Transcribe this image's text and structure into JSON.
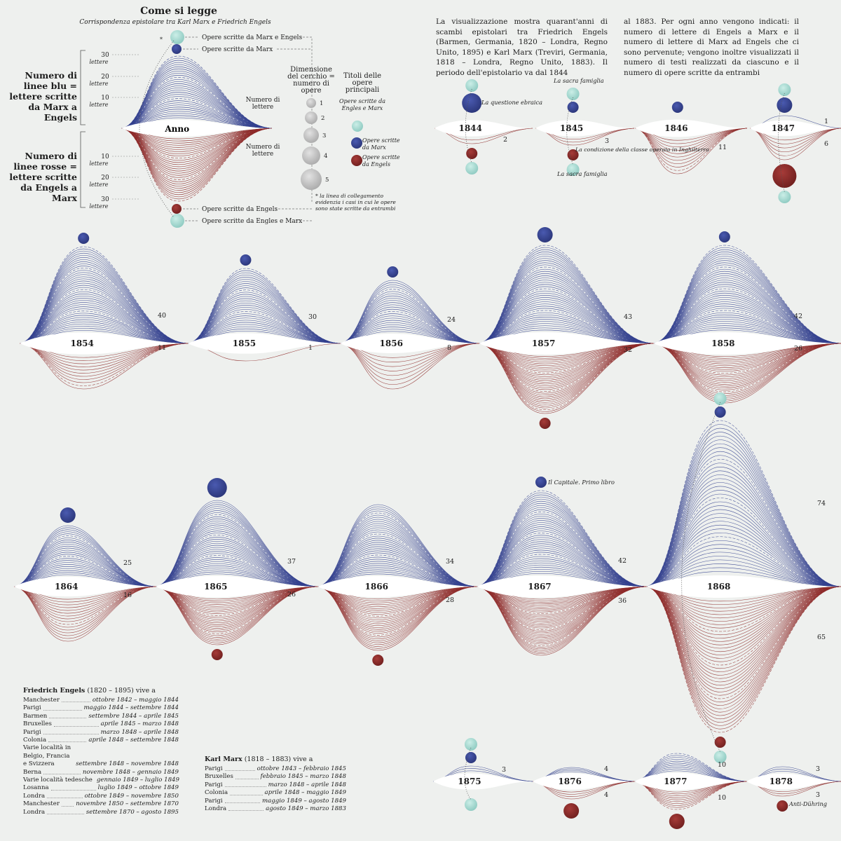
{
  "legend": {
    "title": "Come si legge",
    "subtitle": "Corrispondenza epistolare tra Karl Marx e Friedrich Engels",
    "blue_label": "Numero di linee blu = lettere scritte da Marx a Engels",
    "red_label": "Numero di linee rosse = lettere scritte da Engels a Marx",
    "ticks_top": [
      "30",
      "20",
      "10"
    ],
    "ticks_bottom": [
      "10",
      "20",
      "30"
    ],
    "tick_unit": "lettere",
    "year_label": "Anno",
    "letters_label": "Numero di lettere",
    "dot_both": "Opere scritte da Marx e Engels",
    "dot_marx": "Opere scritte da Marx",
    "dot_engels": "Opere scritte da Engels",
    "dot_both_bottom": "Opere scritte da Engles e Marx",
    "size_title": "Dimensione del cerchio = numero di opere",
    "sizes": [
      "1",
      "2",
      "3",
      "4",
      "5"
    ],
    "titles_header": "Titoli delle opere principali",
    "titles_both": "Opere scritte da Engles e Marx",
    "titles_marx": "Opere scritte da Marx",
    "titles_engels": "Opere scritte da Engels",
    "footnote": "* la linea di collegamento evidenzia i casi in cui le opere sono state scritte da entrambi"
  },
  "intro_left": "La visualizzazione mostra quarant'anni di scambi epistolari tra Friedrich Engels (Barmen, Germania, 1820 – Londra, Regno Unito, 1895) e Karl Marx (Treviri, Germania, 1818 – Londra, Regno Unito, 1883). Il periodo dell'epistolario va dal 1844",
  "intro_right": "al 1883. Per ogni anno vengono indicati: il numero di lettere di Engels a Marx e il numero di lettere di Marx ad Engels che ci sono pervenute; vengono inoltre visualizzati il numero di testi realizzati da ciascuno e il numero di opere scritte da entrambi",
  "colors": {
    "marx_blue": "#34418f",
    "engels_red": "#8e2b2a",
    "both_teal": "#a8d8d0",
    "background": "#eef0ee"
  },
  "chart_data": {
    "type": "line",
    "series": [
      {
        "name": "Marx a Engels",
        "color": "#34418f"
      },
      {
        "name": "Engels a Marx",
        "color": "#8e2b2a"
      }
    ],
    "years": [
      {
        "year": "1844",
        "marx": 0,
        "engels": 2,
        "works_marx": 3,
        "works_engels": 1,
        "works_both": 1,
        "notes": [
          "La questione ebraica"
        ]
      },
      {
        "year": "1845",
        "marx": 0,
        "engels": 3,
        "works_marx": 1,
        "works_engels": 1,
        "works_both": 2,
        "notes": [
          "La sacra famiglia",
          "La condizione della classe operaia in Inghilterra",
          "La sacra famiglia"
        ]
      },
      {
        "year": "1846",
        "marx": 0,
        "engels": 11,
        "works_marx": 1,
        "works_engels": 0,
        "works_both": 0
      },
      {
        "year": "1847",
        "marx": 1,
        "engels": 6,
        "works_marx": 2,
        "works_engels": 4,
        "works_both": 2
      },
      {
        "year": "1854",
        "marx": 40,
        "engels": 11,
        "works_marx": 1,
        "works_engels": 0,
        "works_both": 0
      },
      {
        "year": "1855",
        "marx": 30,
        "engels": 1,
        "works_marx": 1,
        "works_engels": 0,
        "works_both": 0
      },
      {
        "year": "1856",
        "marx": 24,
        "engels": 8,
        "works_marx": 1,
        "works_engels": 0,
        "works_both": 0
      },
      {
        "year": "1857",
        "marx": 43,
        "engels": 32,
        "works_marx": 2,
        "works_engels": 1,
        "works_both": 0
      },
      {
        "year": "1858",
        "marx": 42,
        "engels": 26,
        "works_marx": 1,
        "works_engels": 0,
        "works_both": 0
      },
      {
        "year": "1864",
        "marx": 25,
        "engels": 16,
        "works_marx": 2,
        "works_engels": 0,
        "works_both": 0
      },
      {
        "year": "1865",
        "marx": 37,
        "engels": 26,
        "works_marx": 3,
        "works_engels": 1,
        "works_both": 0
      },
      {
        "year": "1866",
        "marx": 34,
        "engels": 28,
        "works_marx": 0,
        "works_engels": 1,
        "works_both": 0
      },
      {
        "year": "1867",
        "marx": 42,
        "engels": 36,
        "works_marx": 1,
        "works_engels": 0,
        "works_both": 0,
        "notes": [
          "Il Capitale. Primo libro"
        ]
      },
      {
        "year": "1868",
        "marx": 74,
        "engels": 65,
        "works_marx": 1,
        "works_engels": 1,
        "works_both": 2
      },
      {
        "year": "1875",
        "marx": 3,
        "engels": 0,
        "works_marx": 1,
        "works_engels": 0,
        "works_both": 2
      },
      {
        "year": "1876",
        "marx": 4,
        "engels": 4,
        "works_marx": 0,
        "works_engels": 2,
        "works_both": 0
      },
      {
        "year": "1877",
        "marx": 10,
        "engels": 10,
        "works_marx": 0,
        "works_engels": 2,
        "works_both": 0
      },
      {
        "year": "1878",
        "marx": 3,
        "engels": 3,
        "works_marx": 0,
        "works_engels": 1,
        "works_both": 0,
        "notes": [
          "Anti-Dühring"
        ]
      }
    ]
  },
  "engels_lives": {
    "header_name": "Friedrich Engels",
    "header_rest": " (1820 – 1895) vive a",
    "rows": [
      {
        "place": "Manchester",
        "dates": "ottobre 1842 – maggio 1844"
      },
      {
        "place": "Parigi",
        "dates": "maggio 1844 – settembre 1844"
      },
      {
        "place": "Barmen",
        "dates": "settembre 1844 – aprile 1845"
      },
      {
        "place": "Bruxelles",
        "dates": "aprile 1845 – marzo 1848"
      },
      {
        "place": "Parigi",
        "dates": "marzo 1848 – aprile 1848"
      },
      {
        "place": "Colonia",
        "dates": "aprile 1848 – settembre 1848"
      },
      {
        "place": "Varie località in Belgio, Francia e Svizzera",
        "dates": "settembre 1848 – novembre 1848"
      },
      {
        "place": "Berna",
        "dates": "novembre 1848 – gennaio 1849"
      },
      {
        "place": "Varie località tedesche",
        "dates": "gennaio 1849 – luglio 1849"
      },
      {
        "place": "Losanna",
        "dates": "luglio 1849 – ottobre 1849"
      },
      {
        "place": "Londra",
        "dates": "ottobre 1849 – novembre 1850"
      },
      {
        "place": "Manchester",
        "dates": "novembre 1850 – settembre 1870"
      },
      {
        "place": "Londra",
        "dates": "settembre 1870 – agosto 1895"
      }
    ]
  },
  "marx_lives": {
    "header_name": "Karl Marx",
    "header_rest": " (1818 – 1883) vive a",
    "rows": [
      {
        "place": "Parigi",
        "dates": "ottobre 1843 – febbraio 1845"
      },
      {
        "place": "Bruxelles",
        "dates": "febbraio 1845 – marzo 1848"
      },
      {
        "place": "Parigi",
        "dates": "marzo 1848 – aprile 1848"
      },
      {
        "place": "Colonia",
        "dates": "aprile 1848 – maggio 1849"
      },
      {
        "place": "Parigi",
        "dates": "maggio 1849 – agosto 1849"
      },
      {
        "place": "Londra",
        "dates": "agosto 1849 – marzo 1883"
      }
    ]
  }
}
